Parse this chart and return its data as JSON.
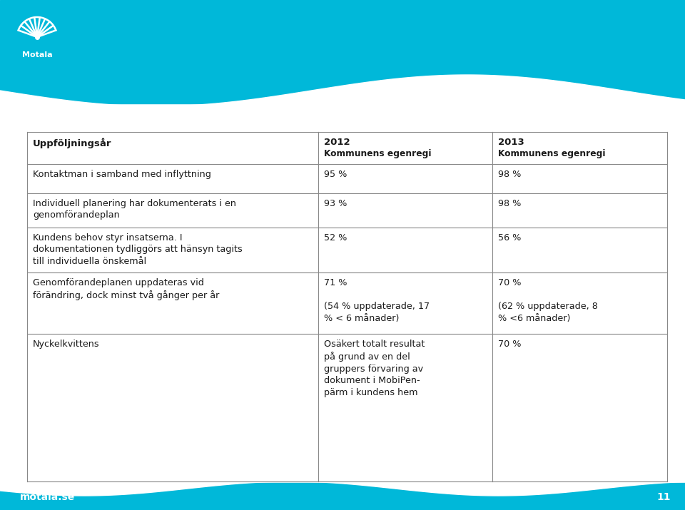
{
  "bg_color": "#ffffff",
  "cyan_color": "#00b8d9",
  "text_color": "#1a1a1a",
  "line_color": "#888888",
  "col0_header": "Uppföljningsår",
  "col1_year": "2012",
  "col1_sub": "Kommunens egenregi",
  "col2_year": "2013",
  "col2_sub": "Kommunens egenregi",
  "rows": [
    {
      "col0": "Kontaktman i samband med inflyttning",
      "col1": "95 %",
      "col2": "98 %"
    },
    {
      "col0": "Individuell planering har dokumenterats i en\ngenomförandeplan",
      "col1": "93 %",
      "col2": "98 %"
    },
    {
      "col0": "Kundens behov styr insatserna. I\ndokumentationen tydliggörs att hänsyn tagits\ntill individuella önskemål",
      "col1": "52 %",
      "col2": "56 %"
    },
    {
      "col0": "Genomförandeplanen uppdateras vid\nförändring, dock minst två gånger per år",
      "col1": "71 %\n\n(54 % uppdaterade, 17\n% < 6 månader)",
      "col2": "70 %\n\n(62 % uppdaterade, 8\n% <6 månader)"
    },
    {
      "col0": "Nyckelkvittens",
      "col1": "Osäkert totalt resultat\npå grund av en del\ngruppers förvaring av\ndokument i MobiPen-\npärm i kundens hem",
      "col2": "70 %"
    }
  ],
  "footer_text": "motala.se",
  "page_number": "11"
}
